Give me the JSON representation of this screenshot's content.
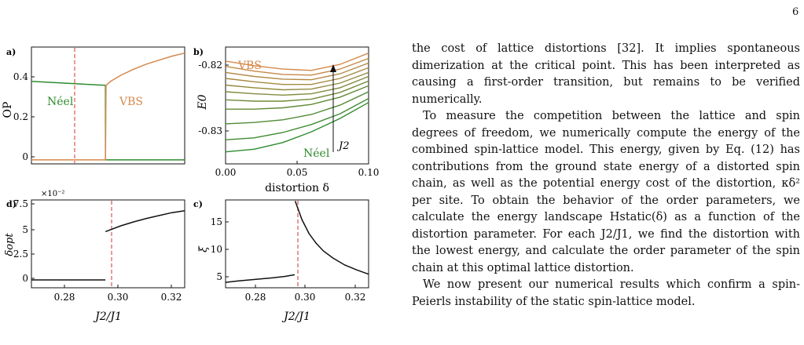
{
  "page_number": "6",
  "figure": {
    "panels": {
      "a": {
        "letter": "a)",
        "ylabel": "OP",
        "yticks": [
          "0",
          "0.2",
          "0.4"
        ],
        "left_label": "Néel",
        "right_label": "VBS"
      },
      "b": {
        "letter": "b)",
        "ylabel": "E0",
        "yticks": [
          "-0.82",
          "-0.83"
        ],
        "xticks": [
          "0.00",
          "0.05",
          "0.10"
        ],
        "xlabel": "distortion δ",
        "top_label": "VBS",
        "bottom_label": "Néel",
        "arrow_label": "J2"
      },
      "d": {
        "letter": "d)",
        "ylabel": "δopt",
        "yticks": [
          "7.5",
          "5",
          "2.5",
          "0"
        ],
        "exponent": "×10⁻²",
        "xticks": [
          "0.28",
          "0.30",
          "0.32"
        ],
        "xlabel": "J2/J1"
      },
      "c": {
        "letter": "c)",
        "ylabel": "ξ",
        "yticks": [
          "15",
          "10",
          "5"
        ],
        "xticks": [
          "0.28",
          "0.30",
          "0.32"
        ],
        "xlabel": "J2/J1"
      }
    },
    "colors": {
      "neel": "#2e8b2e",
      "vbs": "#d6884a",
      "critical": "#d9534f",
      "black": "#111111"
    }
  },
  "chart_data": [
    {
      "panel": "a",
      "type": "line",
      "xlim": [
        0.265,
        0.325
      ],
      "ylim": [
        -0.02,
        0.56
      ],
      "critical_x": 0.294,
      "series": [
        {
          "name": "Néel",
          "x": [
            0.265,
            0.294,
            0.294,
            0.325
          ],
          "y": [
            0.39,
            0.37,
            0.0,
            0.0
          ]
        },
        {
          "name": "VBS",
          "x": [
            0.265,
            0.294,
            0.2942,
            0.296,
            0.3,
            0.305,
            0.31,
            0.315,
            0.32,
            0.325
          ],
          "y": [
            0.0,
            0.0,
            0.37,
            0.39,
            0.42,
            0.45,
            0.475,
            0.495,
            0.515,
            0.53
          ]
        }
      ]
    },
    {
      "panel": "b",
      "type": "line",
      "xlim": [
        0.0,
        0.1
      ],
      "ylim": [
        -0.835,
        -0.8175
      ],
      "series": [
        {
          "x": [
            0.0,
            0.02,
            0.04,
            0.06,
            0.08,
            0.1
          ],
          "y": [
            -0.8332,
            -0.8328,
            -0.8318,
            -0.8302,
            -0.8282,
            -0.8258
          ]
        },
        {
          "x": [
            0.0,
            0.02,
            0.04,
            0.06,
            0.08,
            0.1
          ],
          "y": [
            -0.8314,
            -0.8311,
            -0.8303,
            -0.8291,
            -0.8275,
            -0.8252
          ]
        },
        {
          "x": [
            0.0,
            0.02,
            0.04,
            0.06,
            0.08,
            0.1
          ],
          "y": [
            -0.829,
            -0.8288,
            -0.8284,
            -0.8276,
            -0.8262,
            -0.8242
          ]
        },
        {
          "x": [
            0.0,
            0.02,
            0.04,
            0.06,
            0.08,
            0.1
          ],
          "y": [
            -0.8268,
            -0.8268,
            -0.8266,
            -0.8261,
            -0.825,
            -0.8233
          ]
        },
        {
          "x": [
            0.0,
            0.02,
            0.04,
            0.06,
            0.08,
            0.1
          ],
          "y": [
            -0.8254,
            -0.8256,
            -0.8256,
            -0.8253,
            -0.8243,
            -0.8226
          ]
        },
        {
          "x": [
            0.0,
            0.02,
            0.04,
            0.06,
            0.08,
            0.1
          ],
          "y": [
            -0.8242,
            -0.8245,
            -0.8247,
            -0.8245,
            -0.8236,
            -0.8219
          ]
        },
        {
          "x": [
            0.0,
            0.02,
            0.04,
            0.06,
            0.08,
            0.1
          ],
          "y": [
            -0.8232,
            -0.8236,
            -0.8239,
            -0.8238,
            -0.8229,
            -0.8213
          ]
        },
        {
          "x": [
            0.0,
            0.02,
            0.04,
            0.06,
            0.08,
            0.1
          ],
          "y": [
            -0.8222,
            -0.8227,
            -0.8231,
            -0.8231,
            -0.8222,
            -0.8206
          ]
        },
        {
          "x": [
            0.0,
            0.02,
            0.04,
            0.06,
            0.08,
            0.1
          ],
          "y": [
            -0.8213,
            -0.8219,
            -0.8223,
            -0.8224,
            -0.8215,
            -0.8199
          ]
        },
        {
          "x": [
            0.0,
            0.02,
            0.04,
            0.06,
            0.08,
            0.1
          ],
          "y": [
            -0.8204,
            -0.8211,
            -0.8216,
            -0.8217,
            -0.8208,
            -0.8192
          ]
        },
        {
          "x": [
            0.0,
            0.02,
            0.04,
            0.06,
            0.08,
            0.1
          ],
          "y": [
            -0.8196,
            -0.8203,
            -0.8208,
            -0.821,
            -0.8201,
            -0.8184
          ]
        }
      ]
    },
    {
      "panel": "d",
      "type": "line",
      "xlim": [
        0.265,
        0.325
      ],
      "ylim": [
        -0.8,
        8.2
      ],
      "critical_x": 0.294,
      "series": [
        {
          "x": [
            0.265,
            0.294
          ],
          "y": [
            0.0,
            0.0
          ]
        },
        {
          "x": [
            0.294,
            0.3,
            0.305,
            0.31,
            0.315,
            0.32,
            0.325
          ],
          "y": [
            4.95,
            5.55,
            5.95,
            6.3,
            6.6,
            6.9,
            7.1
          ]
        }
      ]
    },
    {
      "panel": "c",
      "type": "line",
      "xlim": [
        0.265,
        0.325
      ],
      "ylim": [
        3.0,
        19.2
      ],
      "critical_x": 0.294,
      "series": [
        {
          "x": [
            0.265,
            0.27,
            0.275,
            0.28,
            0.285,
            0.29,
            0.294
          ],
          "y": [
            4.0,
            4.25,
            4.45,
            4.65,
            4.85,
            5.1,
            5.4
          ]
        },
        {
          "x": [
            0.2942,
            0.297,
            0.3,
            0.303,
            0.306,
            0.31,
            0.315,
            0.32,
            0.325
          ],
          "y": [
            19.0,
            15.6,
            13.0,
            11.2,
            9.8,
            8.5,
            7.2,
            6.3,
            5.5
          ]
        }
      ]
    }
  ],
  "text": {
    "p1": "the cost of lattice distortions [32]. It implies spontaneous dimerization at the critical point. This has been interpreted as causing a first-order transition, but remains to be verified numerically.",
    "p2": "To measure the competition between the lattice and spin degrees of freedom, we numerically compute the energy of the combined spin-lattice model. This energy, given by Eq. (12) has contributions from the ground state energy of a distorted spin chain, as well as the potential energy cost of the distortion, κδ² per site. To obtain the behavior of the order parameters, we calculate the energy landscape Hstatic(δ) as a function of the distortion parameter. For each J2/J1, we find the distortion with the lowest energy, and calculate the order parameter of the spin chain at this optimal lattice distortion.",
    "p3": "We now present our numerical results which confirm a spin-Peierls instability of the static spin-lattice model."
  }
}
